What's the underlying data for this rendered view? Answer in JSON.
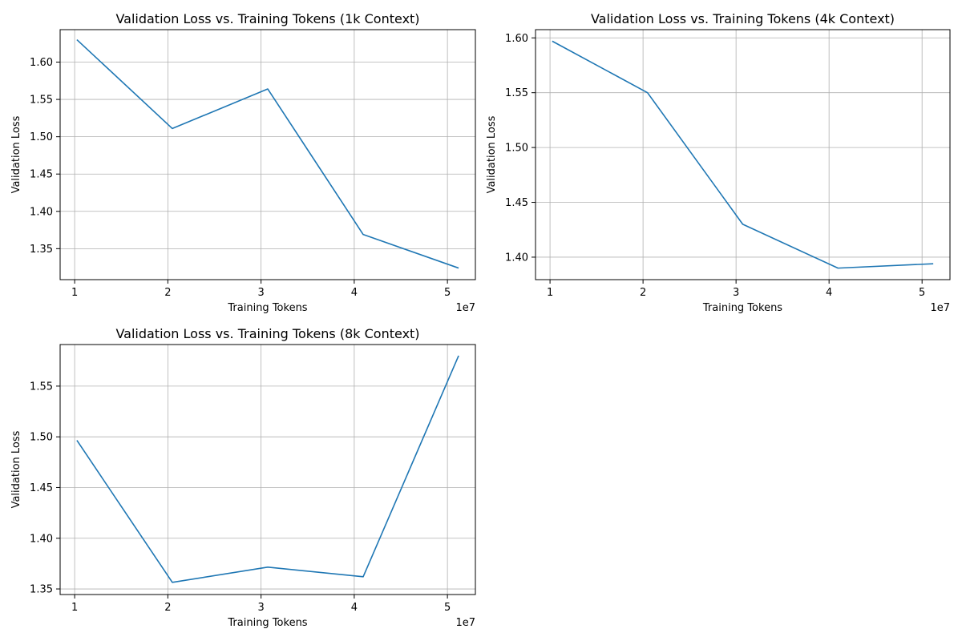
{
  "chart_data": [
    {
      "type": "line",
      "title": "Validation Loss vs. Training Tokens (1k Context)",
      "xlabel": "Training Tokens",
      "ylabel": "Validation Loss",
      "x_offset_label": "1e7",
      "x_scale": 10000000,
      "x": [
        10240000,
        20480000,
        30720000,
        40960000,
        51200000
      ],
      "values": [
        1.63,
        1.511,
        1.564,
        1.369,
        1.324
      ],
      "xlim": [
        8440000,
        53000000
      ],
      "ylim": [
        1.3085,
        1.6435
      ],
      "xticks": [
        10000000,
        20000000,
        30000000,
        40000000,
        50000000
      ],
      "xtick_labels": [
        "1",
        "2",
        "3",
        "4",
        "5"
      ],
      "yticks": [
        1.35,
        1.4,
        1.45,
        1.5,
        1.55,
        1.6
      ],
      "ytick_labels": [
        "1.35",
        "1.40",
        "1.45",
        "1.50",
        "1.55",
        "1.60"
      ],
      "grid": true,
      "line_color": "#1f77b4"
    },
    {
      "type": "line",
      "title": "Validation Loss vs. Training Tokens (4k Context)",
      "xlabel": "Training Tokens",
      "ylabel": "Validation Loss",
      "x_offset_label": "1e7",
      "x_scale": 10000000,
      "x": [
        10240000,
        20480000,
        30720000,
        40960000,
        51200000
      ],
      "values": [
        1.597,
        1.55,
        1.43,
        1.39,
        1.394
      ],
      "xlim": [
        8440000,
        53000000
      ],
      "ylim": [
        1.3795,
        1.6075
      ],
      "xticks": [
        10000000,
        20000000,
        30000000,
        40000000,
        50000000
      ],
      "xtick_labels": [
        "1",
        "2",
        "3",
        "4",
        "5"
      ],
      "yticks": [
        1.4,
        1.45,
        1.5,
        1.55,
        1.6
      ],
      "ytick_labels": [
        "1.40",
        "1.45",
        "1.50",
        "1.55",
        "1.60"
      ],
      "grid": true,
      "line_color": "#1f77b4"
    },
    {
      "type": "line",
      "title": "Validation Loss vs. Training Tokens (8k Context)",
      "xlabel": "Training Tokens",
      "ylabel": "Validation Loss",
      "x_offset_label": "1e7",
      "x_scale": 10000000,
      "x": [
        10240000,
        20480000,
        30720000,
        40960000,
        51200000
      ],
      "values": [
        1.4965,
        1.3565,
        1.3715,
        1.362,
        1.58
      ],
      "xlim": [
        8440000,
        53000000
      ],
      "ylim": [
        1.3445,
        1.591
      ],
      "xticks": [
        10000000,
        20000000,
        30000000,
        40000000,
        50000000
      ],
      "xtick_labels": [
        "1",
        "2",
        "3",
        "4",
        "5"
      ],
      "yticks": [
        1.35,
        1.4,
        1.45,
        1.5,
        1.55
      ],
      "ytick_labels": [
        "1.35",
        "1.40",
        "1.45",
        "1.50",
        "1.55"
      ],
      "grid": true,
      "line_color": "#1f77b4"
    }
  ]
}
